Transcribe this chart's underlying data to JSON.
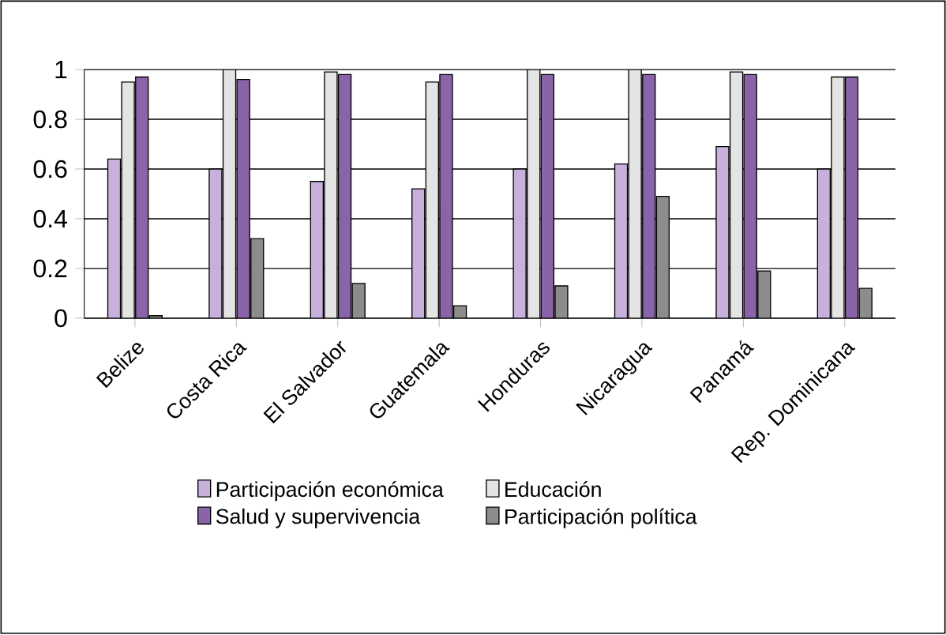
{
  "chart_data": {
    "type": "bar",
    "categories": [
      "Belize",
      "Costa Rica",
      "El Salvador",
      "Guatemala",
      "Honduras",
      "Nicaragua",
      "Panamá",
      "Rep. Dominicana"
    ],
    "series": [
      {
        "name": "Participación económica",
        "color": "#c8b0dc",
        "values": [
          0.64,
          0.6,
          0.55,
          0.52,
          0.6,
          0.62,
          0.69,
          0.6
        ]
      },
      {
        "name": "Educación",
        "color": "#e4e4e4",
        "values": [
          0.95,
          1.0,
          0.99,
          0.95,
          1.0,
          1.0,
          0.99,
          0.97
        ]
      },
      {
        "name": "Salud y supervivencia",
        "color": "#8a64a8",
        "values": [
          0.97,
          0.96,
          0.98,
          0.98,
          0.98,
          0.98,
          0.98,
          0.97
        ]
      },
      {
        "name": "Participación política",
        "color": "#8c8c8c",
        "values": [
          0.01,
          0.32,
          0.14,
          0.05,
          0.13,
          0.49,
          0.19,
          0.12
        ]
      }
    ],
    "ylim": [
      0,
      1
    ],
    "yticks": [
      0,
      0.2,
      0.4,
      0.6,
      0.8,
      1
    ],
    "grid": "y",
    "legend": "bottom"
  }
}
